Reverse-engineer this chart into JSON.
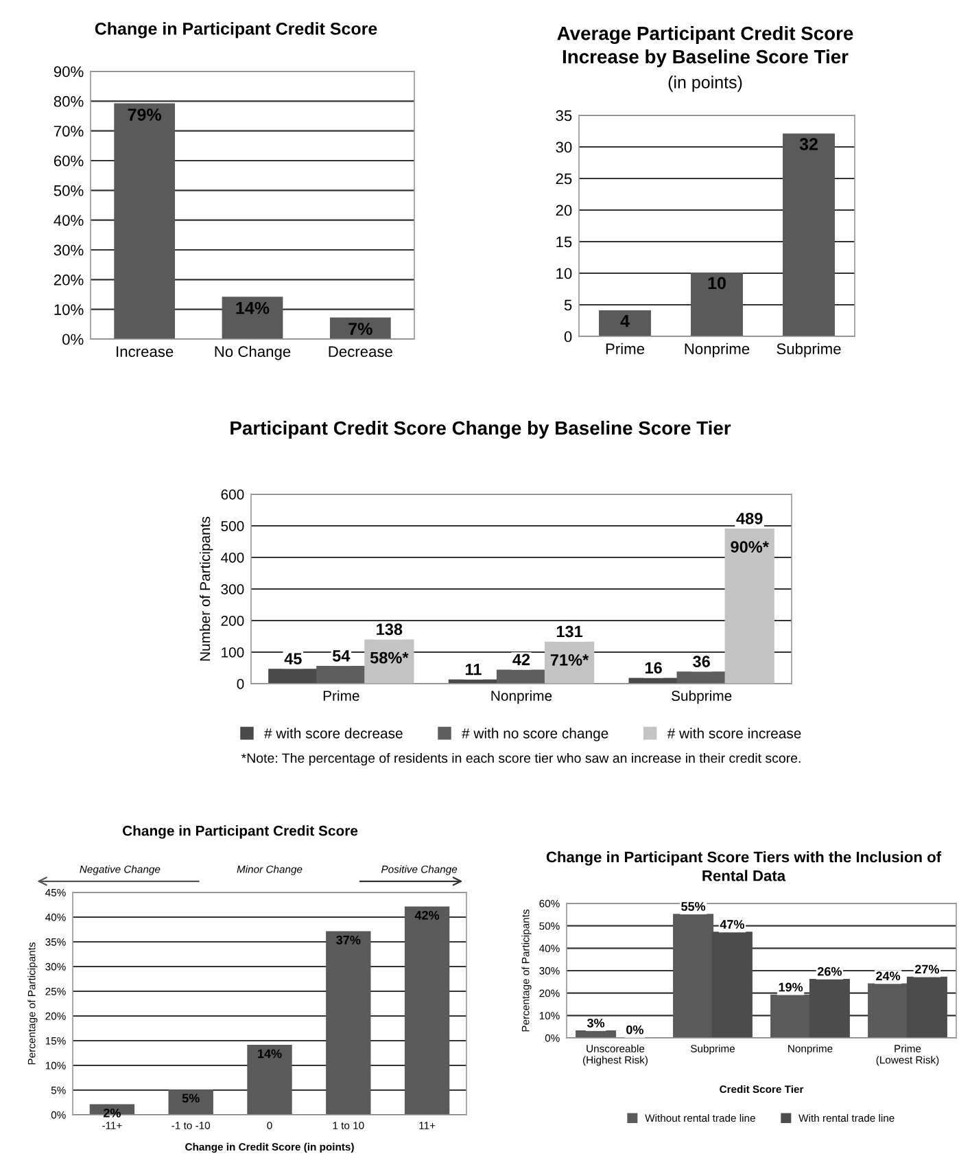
{
  "chart_data": [
    {
      "type": "bar",
      "title": "Change in Participant Credit Score",
      "categories": [
        "Increase",
        "No Change",
        "Decrease"
      ],
      "values": [
        79,
        14,
        7
      ],
      "value_labels": [
        "79%",
        "14%",
        "7%"
      ],
      "color": "#5a5a5a",
      "ylim": [
        0,
        90
      ],
      "yticks": [
        {
          "value": 0,
          "label": "0%"
        },
        {
          "value": 10,
          "label": "10%"
        },
        {
          "value": 20,
          "label": "20%"
        },
        {
          "value": 30,
          "label": "30%"
        },
        {
          "value": 40,
          "label": "40%"
        },
        {
          "value": 50,
          "label": "50%"
        },
        {
          "value": 60,
          "label": "60%"
        },
        {
          "value": 70,
          "label": "70%"
        },
        {
          "value": 80,
          "label": "80%"
        },
        {
          "value": 90,
          "label": "90%"
        }
      ],
      "grid": "y"
    },
    {
      "type": "bar",
      "title": "Average Participant Credit Score\nIncrease by Baseline Score Tier",
      "subtitle": "(in points)",
      "categories": [
        "Prime",
        "Nonprime",
        "Subprime"
      ],
      "values": [
        4,
        10,
        32
      ],
      "data_labels": true,
      "color": "#5a5a5a",
      "ylim": [
        0,
        35
      ],
      "yticks": [
        0,
        5,
        10,
        15,
        20,
        25,
        30,
        35
      ],
      "grid": "y"
    },
    {
      "type": "bar",
      "title": "Participant Credit Score Change by Baseline Score Tier",
      "ylabel": "Number of Participants",
      "categories": [
        "Prime",
        "Nonprime",
        "Subprime"
      ],
      "series": [
        {
          "name": "# with score decrease",
          "color": "#4a4a4a",
          "values": [
            45,
            11,
            16
          ]
        },
        {
          "name": "# with no score change",
          "color": "#5e5e5e",
          "values": [
            54,
            42,
            36
          ]
        },
        {
          "name": "# with score increase",
          "color": "#c4c4c4",
          "values": [
            138,
            131,
            489
          ]
        }
      ],
      "data_labels": true,
      "ylim": [
        0,
        600
      ],
      "yticks": [
        0,
        100,
        200,
        300,
        400,
        500,
        600
      ],
      "grid": "y",
      "legend": "bottom",
      "annotations": [
        "58%*",
        "71%*",
        "90%*",
        "*Note: The percentage of residents in each score tier who saw an increase in their credit score."
      ]
    },
    {
      "type": "bar",
      "title": "Change in Participant Credit Score",
      "xlabel": "Change in Credit Score (in points)",
      "ylabel": "Percentage of Participants",
      "categories": [
        "-11+",
        "-1 to -10",
        "0",
        "1 to 10",
        "11+"
      ],
      "values": [
        2,
        5,
        14,
        37,
        42
      ],
      "value_labels": [
        "2%",
        "5%",
        "14%",
        "37%",
        "42%"
      ],
      "color": "#5a5a5a",
      "ylim": [
        0,
        45
      ],
      "yticks": [
        {
          "value": 0,
          "label": "0%"
        },
        {
          "value": 5,
          "label": "5%"
        },
        {
          "value": 10,
          "label": "10%"
        },
        {
          "value": 15,
          "label": "15%"
        },
        {
          "value": 20,
          "label": "20%"
        },
        {
          "value": 25,
          "label": "25%"
        },
        {
          "value": 30,
          "label": "30%"
        },
        {
          "value": 35,
          "label": "35%"
        },
        {
          "value": 40,
          "label": "40%"
        },
        {
          "value": 45,
          "label": "45%"
        }
      ],
      "grid": "y",
      "annotations": [
        "Negative Change",
        "Minor Change",
        "Positive Change"
      ]
    },
    {
      "type": "bar",
      "title": "Change in Participant Score Tiers with the Inclusion of\nRental Data",
      "xlabel": "Credit Score Tier",
      "ylabel": "Percentage of Participants",
      "categories": [
        "Unscoreable\n(Highest Risk)",
        "Subprime",
        "Nonprime",
        "Prime\n(Lowest Risk)"
      ],
      "series": [
        {
          "name": "Without rental trade line",
          "color": "#5a5a5a",
          "values": [
            3,
            55,
            19,
            24
          ],
          "value_labels": [
            "3%",
            "55%",
            "19%",
            "24%"
          ]
        },
        {
          "name": "With rental trade line",
          "color": "#4c4c4c",
          "values": [
            0,
            47,
            26,
            27
          ],
          "value_labels": [
            "0%",
            "47%",
            "26%",
            "27%"
          ]
        }
      ],
      "ylim": [
        0,
        60
      ],
      "yticks": [
        {
          "value": 0,
          "label": "0%"
        },
        {
          "value": 10,
          "label": "10%"
        },
        {
          "value": 20,
          "label": "20%"
        },
        {
          "value": 30,
          "label": "30%"
        },
        {
          "value": 40,
          "label": "40%"
        },
        {
          "value": 50,
          "label": "50%"
        },
        {
          "value": 60,
          "label": "60%"
        }
      ],
      "grid": "y",
      "legend": "bottom"
    }
  ]
}
